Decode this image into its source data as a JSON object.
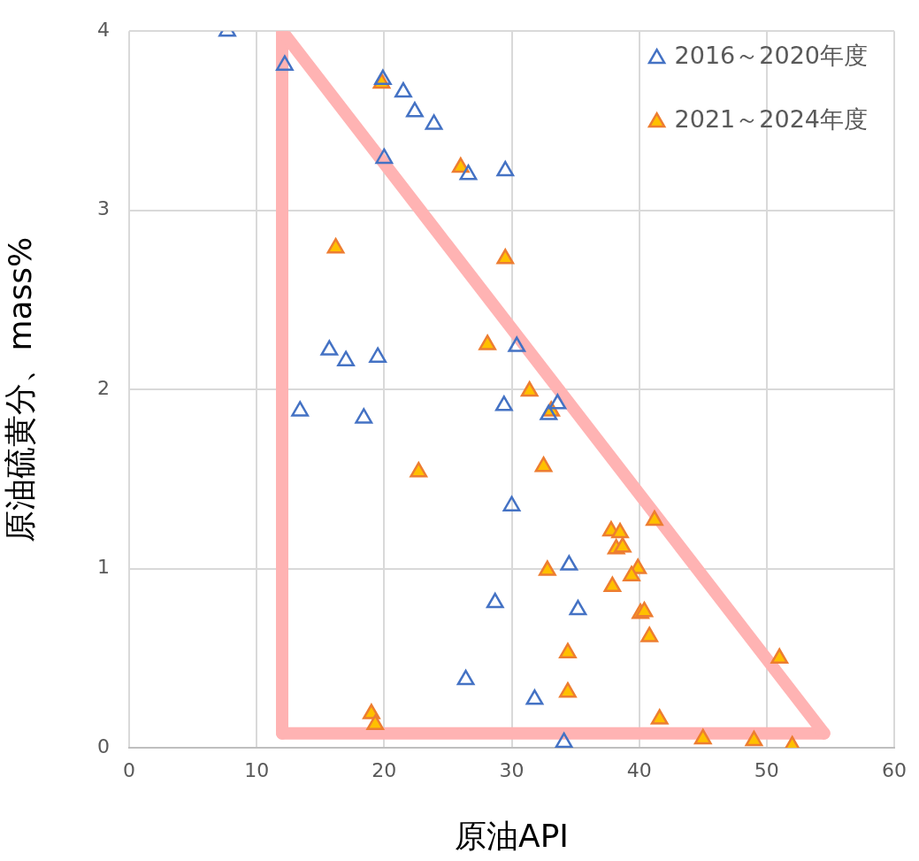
{
  "chart_data": {
    "type": "scatter",
    "xlabel": "原油API",
    "ylabel": "原油硫黄分、mass%",
    "xlim": [
      0,
      60
    ],
    "xticks": [
      0,
      10,
      20,
      30,
      40,
      50,
      60
    ],
    "ylim": [
      0,
      4
    ],
    "yticks": [
      0,
      1,
      2,
      3,
      4
    ],
    "grid": true,
    "legend": "top right",
    "marker": "triangle",
    "series": [
      {
        "name": "2016～2020年度",
        "color": "#4472c4",
        "x": [
          7.7,
          12.2,
          19.9,
          21.5,
          22.4,
          23.9,
          20.0,
          26.6,
          29.5,
          15.7,
          17.0,
          19.5,
          13.4,
          18.4,
          29.4,
          30.4,
          33.6,
          32.9,
          30.0,
          34.5,
          35.2,
          28.7,
          26.4,
          31.8,
          34.1
        ],
        "values": [
          4.0,
          3.81,
          3.73,
          3.66,
          3.55,
          3.48,
          3.29,
          3.2,
          3.22,
          2.22,
          2.16,
          2.18,
          1.88,
          1.84,
          1.91,
          2.24,
          1.92,
          1.86,
          1.35,
          1.02,
          0.77,
          0.81,
          0.38,
          0.27,
          0.03
        ]
      },
      {
        "type": "line",
        "marker": "none",
        "color": "#ffb3b3",
        "x": [
          12,
          54.5
        ],
        "values": [
          4.0,
          0.08
        ]
      },
      {
        "type": "line",
        "marker": "none",
        "color": "#ffb3b3",
        "x": [
          12,
          54.5
        ],
        "values": [
          0.08,
          0.08
        ]
      },
      {
        "type": "line",
        "marker": "none",
        "color": "#ffb3b3",
        "x": [
          12,
          12
        ],
        "values": [
          4.0,
          0.08
        ]
      },
      {
        "name": "2021～2024年度",
        "color": "#ffc000",
        "x": [
          19.8,
          26.0,
          16.2,
          29.5,
          28.1,
          31.4,
          33.1,
          22.7,
          32.5,
          37.8,
          38.5,
          38.2,
          38.7,
          41.2,
          32.8,
          39.9,
          39.4,
          37.9,
          40.1,
          40.4,
          40.8,
          34.4,
          34.4,
          41.6,
          51.0,
          19.0,
          19.3,
          45.0,
          49.0,
          52.0
        ],
        "values": [
          3.71,
          3.24,
          2.79,
          2.73,
          2.25,
          1.99,
          1.88,
          1.54,
          1.57,
          1.21,
          1.2,
          1.11,
          1.12,
          1.27,
          0.99,
          1.0,
          0.96,
          0.9,
          0.75,
          0.76,
          0.62,
          0.53,
          0.31,
          0.16,
          0.5,
          0.19,
          0.13,
          0.05,
          0.04,
          0.01
        ]
      }
    ]
  }
}
